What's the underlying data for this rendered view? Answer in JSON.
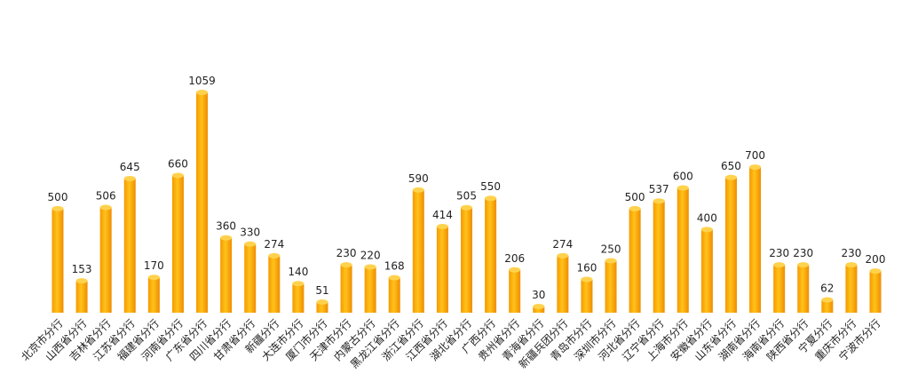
{
  "chart_data": {
    "type": "bar",
    "categories": [
      "北京市分行",
      "山西省分行",
      "吉林省分行",
      "江苏省分行",
      "福建省分行",
      "河南省分行",
      "广东省分行",
      "四川省分行",
      "甘肃省分行",
      "新疆分行",
      "大连市分行",
      "厦门市分行",
      "天津市分行",
      "内蒙古分行",
      "黑龙江省分行",
      "浙江省分行",
      "江西省分行",
      "湖北省分行",
      "广西分行",
      "贵州省分行",
      "青海省分行",
      "新疆兵团分行",
      "青岛市分行",
      "深圳市分行",
      "河北省分行",
      "辽宁省分行",
      "上海市分行",
      "安徽省分行",
      "山东省分行",
      "湖南省分行",
      "海南省分行",
      "陕西省分行",
      "宁夏分行",
      "重庆市分行",
      "宁波市分行"
    ],
    "values": [
      500,
      153,
      506,
      645,
      170,
      660,
      1059,
      360,
      330,
      274,
      140,
      51,
      230,
      220,
      168,
      590,
      414,
      505,
      550,
      206,
      30,
      274,
      160,
      250,
      500,
      537,
      600,
      400,
      650,
      700,
      230,
      230,
      62,
      230,
      200
    ],
    "color": "#ffb000"
  }
}
